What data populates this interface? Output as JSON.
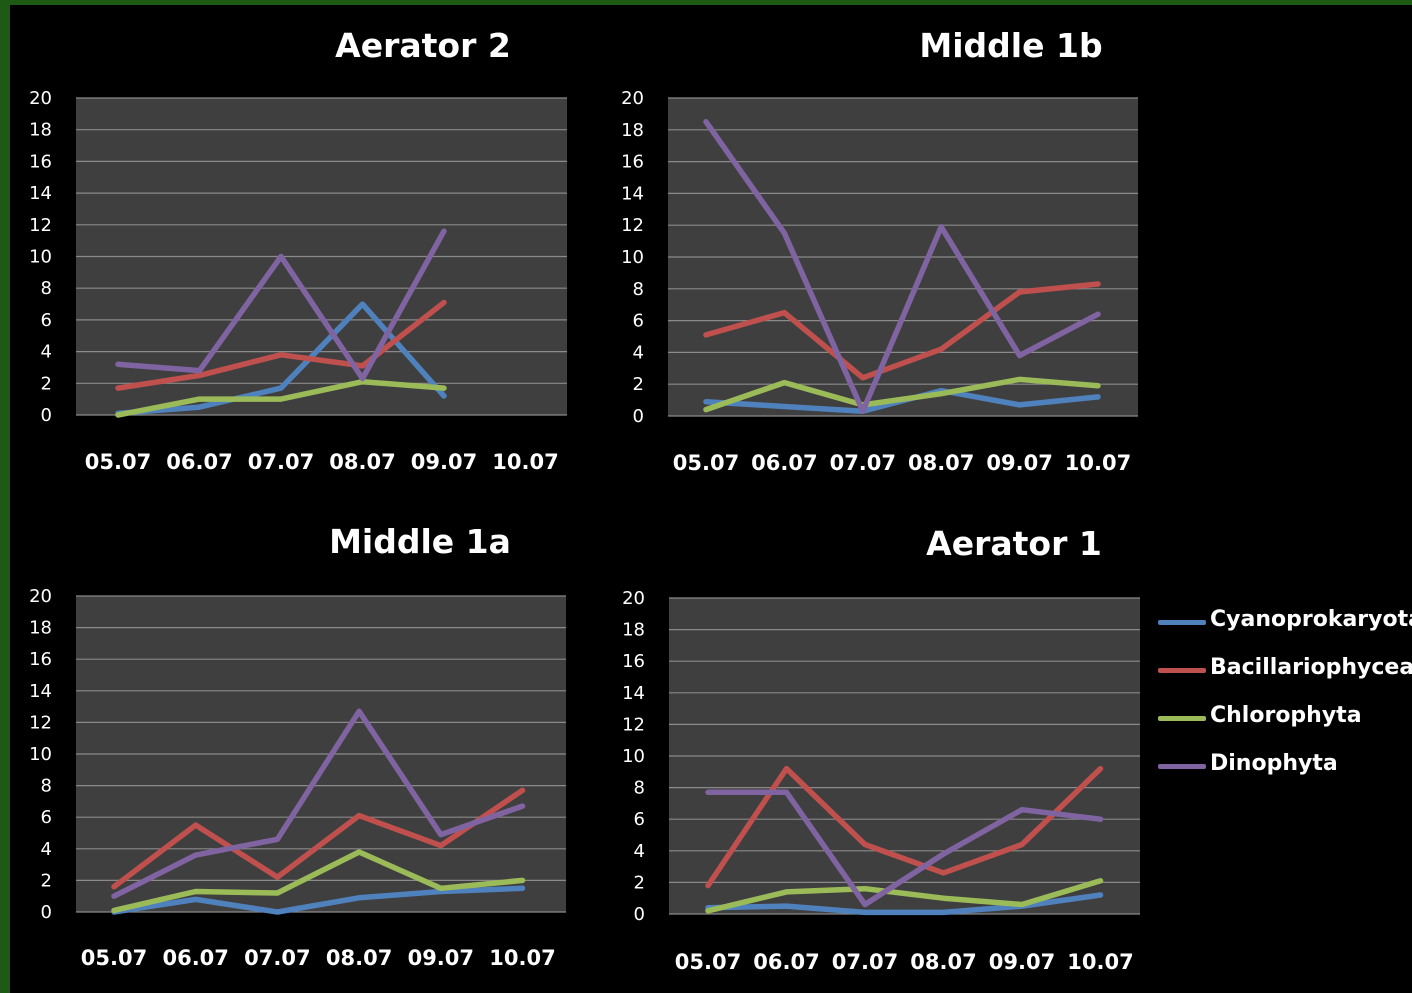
{
  "legend": [
    {
      "name": "Cyanoprokaryota",
      "color": "#4f81bd"
    },
    {
      "name": "Bacillariophyceae",
      "color": "#c0504d"
    },
    {
      "name": "Chlorophyta",
      "color": "#9bbb59"
    },
    {
      "name": "Dinophyta",
      "color": "#8064a2"
    }
  ],
  "chart_data": [
    {
      "type": "line",
      "title": "Aerator 2",
      "categories": [
        "05.07",
        "06.07",
        "07.07",
        "08.07",
        "09.07",
        "10.07"
      ],
      "yticks": [
        0,
        2,
        4,
        6,
        8,
        10,
        12,
        14,
        16,
        18,
        20
      ],
      "ylim": [
        0,
        20
      ],
      "grid": true,
      "series": [
        {
          "name": "Cyanoprokaryota",
          "values": [
            0.1,
            0.5,
            1.7,
            7.0,
            1.2,
            null
          ]
        },
        {
          "name": "Bacillariophyceae",
          "values": [
            1.7,
            2.5,
            3.8,
            3.1,
            7.1,
            null
          ]
        },
        {
          "name": "Chlorophyta",
          "values": [
            0.0,
            1.0,
            1.0,
            2.1,
            1.7,
            null
          ]
        },
        {
          "name": "Dinophyta",
          "values": [
            3.2,
            2.8,
            10.0,
            2.3,
            11.6,
            null
          ]
        }
      ]
    },
    {
      "type": "line",
      "title": "Middle 1b",
      "categories": [
        "05.07",
        "06.07",
        "07.07",
        "08.07",
        "09.07",
        "10.07"
      ],
      "yticks": [
        0,
        2,
        4,
        6,
        8,
        10,
        12,
        14,
        16,
        18,
        20
      ],
      "ylim": [
        0,
        20
      ],
      "grid": true,
      "series": [
        {
          "name": "Cyanoprokaryota",
          "values": [
            0.9,
            0.6,
            0.3,
            1.6,
            0.7,
            1.2
          ]
        },
        {
          "name": "Bacillariophyceae",
          "values": [
            5.1,
            6.5,
            2.4,
            4.2,
            7.8,
            8.3
          ]
        },
        {
          "name": "Chlorophyta",
          "values": [
            0.4,
            2.1,
            0.7,
            1.4,
            2.3,
            1.9
          ]
        },
        {
          "name": "Dinophyta",
          "values": [
            18.5,
            11.5,
            0.3,
            11.9,
            3.8,
            6.4
          ]
        }
      ]
    },
    {
      "type": "line",
      "title": "Middle 1a",
      "categories": [
        "05.07",
        "06.07",
        "07.07",
        "08.07",
        "09.07",
        "10.07"
      ],
      "yticks": [
        0,
        2,
        4,
        6,
        8,
        10,
        12,
        14,
        16,
        18,
        20
      ],
      "ylim": [
        0,
        20
      ],
      "grid": true,
      "series": [
        {
          "name": "Cyanoprokaryota",
          "values": [
            0.0,
            0.8,
            0.0,
            0.9,
            1.3,
            1.5
          ]
        },
        {
          "name": "Bacillariophyceae",
          "values": [
            1.6,
            5.5,
            2.2,
            6.1,
            4.2,
            7.7
          ]
        },
        {
          "name": "Chlorophyta",
          "values": [
            0.1,
            1.3,
            1.2,
            3.8,
            1.5,
            2.0
          ]
        },
        {
          "name": "Dinophyta",
          "values": [
            1.0,
            3.6,
            4.6,
            12.7,
            4.9,
            6.7
          ]
        }
      ]
    },
    {
      "type": "line",
      "title": "Aerator 1",
      "categories": [
        "05.07",
        "06.07",
        "07.07",
        "08.07",
        "09.07",
        "10.07"
      ],
      "yticks": [
        0,
        2,
        4,
        6,
        8,
        10,
        12,
        14,
        16,
        18,
        20
      ],
      "ylim": [
        0,
        20
      ],
      "grid": true,
      "series": [
        {
          "name": "Cyanoprokaryota",
          "values": [
            0.4,
            0.5,
            0.1,
            0.1,
            0.5,
            1.2
          ]
        },
        {
          "name": "Bacillariophyceae",
          "values": [
            1.8,
            9.2,
            4.4,
            2.6,
            4.4,
            9.2
          ]
        },
        {
          "name": "Chlorophyta",
          "values": [
            0.2,
            1.4,
            1.6,
            1.0,
            0.6,
            2.1
          ]
        },
        {
          "name": "Dinophyta",
          "values": [
            7.7,
            7.7,
            0.6,
            3.8,
            6.6,
            6.0
          ]
        }
      ]
    }
  ]
}
